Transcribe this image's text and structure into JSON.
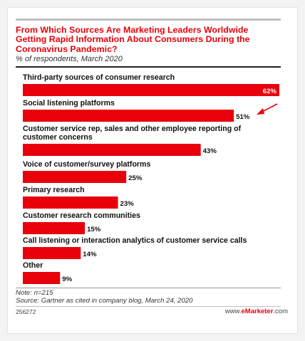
{
  "chart_data": {
    "type": "bar",
    "orientation": "horizontal",
    "title": "From Which Sources Are Marketing Leaders Worldwide Getting Rapid Information About Consumers During the Coronavirus Pandemic?",
    "subtitle": "% of respondents, March 2020",
    "categories": [
      "Third-party sources of consumer research",
      "Social listening platforms",
      "Customer service rep, sales and other employee reporting of customer concerns",
      "Voice of customer/survey platforms",
      "Primary research",
      "Customer research communities",
      "Call listening or interaction analytics of customer service calls",
      "Other"
    ],
    "values": [
      62,
      51,
      43,
      25,
      23,
      15,
      14,
      9
    ],
    "value_labels": [
      "62%",
      "51%",
      "43%",
      "25%",
      "23%",
      "15%",
      "14%",
      "9%"
    ],
    "xlim": [
      0,
      62
    ],
    "grid": false,
    "bar_color": "#e8000b",
    "annotation": "arrow pointing at the 51% value"
  },
  "footer": {
    "note": "Note: n=215",
    "source": "Source: Gartner as cited in company blog, March 24, 2020",
    "chart_id": "256272",
    "brand_prefix": "www.",
    "brand_name": "eMarketer",
    "brand_suffix": ".com"
  },
  "colors": {
    "accent": "#e8000b",
    "text": "#111111"
  }
}
